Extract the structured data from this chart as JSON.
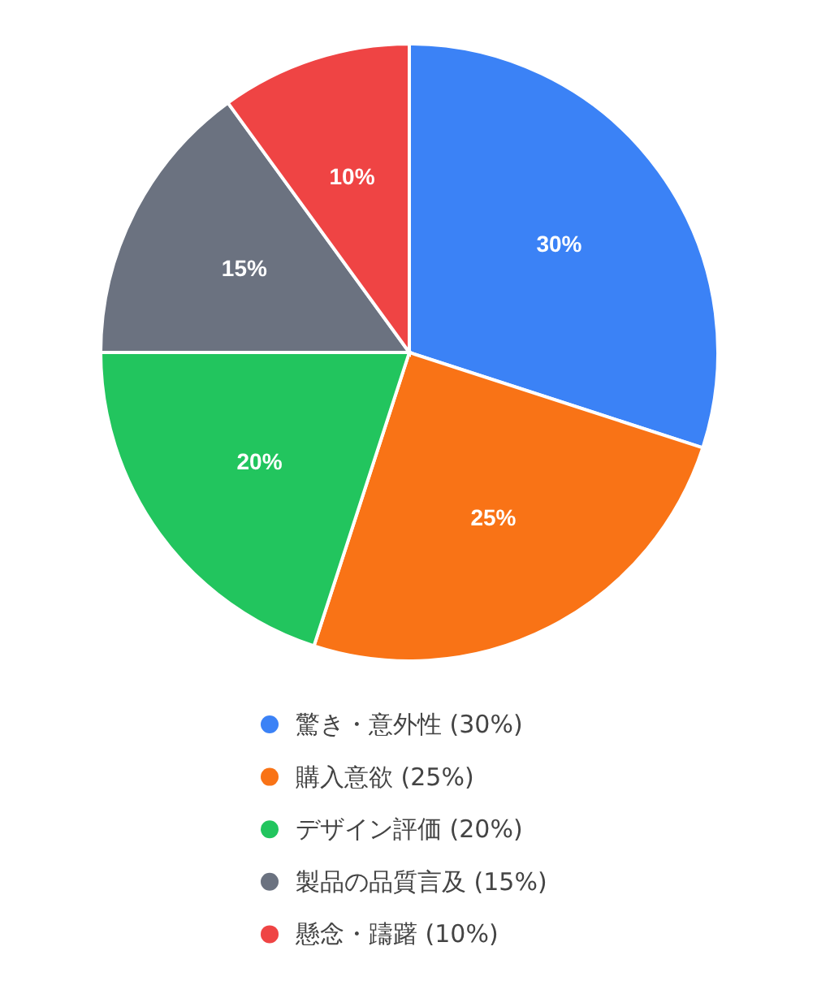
{
  "chart_data": {
    "type": "pie",
    "categories": [
      "驚き・意外性 (30%)",
      "購入意欲 (25%)",
      "デザイン評価 (20%)",
      "製品の品質言及 (15%)",
      "懸念・躊躇 (10%)"
    ],
    "values": [
      30,
      25,
      20,
      15,
      10
    ],
    "colors": [
      "#3b82f6",
      "#f97316",
      "#22c55e",
      "#6b7280",
      "#ef4444"
    ],
    "value_labels": [
      "30%",
      "25%",
      "20%",
      "15%",
      "10%"
    ],
    "legend": "bottom"
  }
}
